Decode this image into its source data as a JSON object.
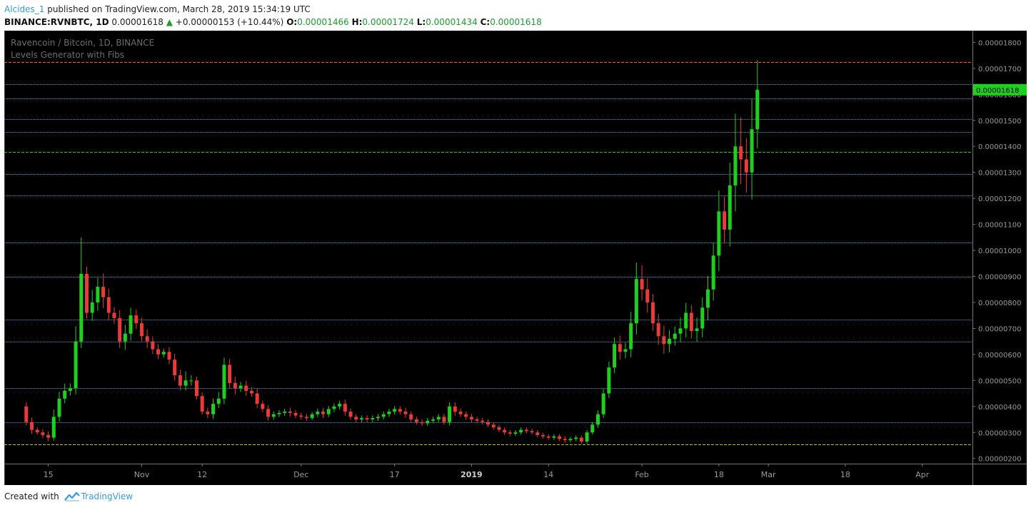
{
  "header": {
    "author": "Alcides_1",
    "published": "published on TradingView.com, March 28, 2019 15:34:19 UTC",
    "symbol": "BINANCE:RVNBTC, 1D",
    "last": "0.00001618",
    "change": "+0.00000153 (+10.44%)",
    "o_label": "O:",
    "o": "0.00001466",
    "h_label": "H:",
    "h": "0.00001724",
    "l_label": "L:",
    "l": "0.00001434",
    "c_label": "C:",
    "c": "0.00001618"
  },
  "footer": {
    "created": "Created with",
    "brand": "TradingView",
    "logo_icon": "tradingview-logo-icon"
  },
  "colors": {
    "background": "#000000",
    "up": "#1ed01e",
    "down": "#ea3a3a",
    "fib": "#3fa0d8",
    "top_level": "#ff5a1e",
    "mid_level": "#22c322",
    "bottom_level": "#c8c800"
  },
  "chart_data": {
    "type": "candlestick",
    "title": "Ravencoin / Bitcoin, 1D, BINANCE",
    "indicator": "Levels Generator with Fibs",
    "last_price_label": "0.00001618",
    "y_ticks": [
      "0.00000200",
      "0.00000300",
      "0.00000400",
      "0.00000500",
      "0.00000600",
      "0.00000700",
      "0.00000800",
      "0.00000900",
      "0.00001000",
      "0.00001100",
      "0.00001200",
      "0.00001300",
      "0.00001400",
      "0.00001500",
      "0.00001600",
      "0.00001700",
      "0.00001800"
    ],
    "ylim": [
      1.8e-06,
      1.845e-05
    ],
    "x_ticks": [
      "15",
      "Nov",
      "12",
      "Dec",
      "17",
      "2019",
      "14",
      "Feb",
      "18",
      "Mar",
      "18",
      "Apr"
    ],
    "x_tick_days": [
      8,
      25,
      36,
      54,
      71,
      85,
      99,
      116,
      130,
      139,
      153,
      167
    ],
    "x_bold": [
      "2019"
    ],
    "xlim": [
      0,
      176
    ],
    "levels": [
      {
        "value": 1.724e-05,
        "style": "dashed",
        "color": "top_level"
      },
      {
        "value": 1.64e-05,
        "style": "dotted",
        "color": "fib"
      },
      {
        "value": 1.585e-05,
        "style": "dotted",
        "color": "fib"
      },
      {
        "value": 1.505e-05,
        "style": "dotted",
        "color": "fib"
      },
      {
        "value": 1.455e-05,
        "style": "dotted",
        "color": "fib"
      },
      {
        "value": 1.38e-05,
        "style": "dashed",
        "color": "mid_level"
      },
      {
        "value": 1.295e-05,
        "style": "dotted",
        "color": "fib"
      },
      {
        "value": 1.21e-05,
        "style": "dotted",
        "color": "fib"
      },
      {
        "value": 1.03e-05,
        "style": "dotted",
        "color": "fib"
      },
      {
        "value": 9e-06,
        "style": "dotted",
        "color": "fib"
      },
      {
        "value": 7.35e-06,
        "style": "dotted",
        "color": "fib"
      },
      {
        "value": 6.5e-06,
        "style": "dotted",
        "color": "fib"
      },
      {
        "value": 4.7e-06,
        "style": "dotted",
        "color": "fib"
      },
      {
        "value": 3.4e-06,
        "style": "dotted",
        "color": "fib"
      },
      {
        "value": 2.55e-06,
        "style": "dashed",
        "color": "bottom_level"
      }
    ],
    "close_units": "1e-8 BTC (satoshi)",
    "start_day": 4,
    "close": [
      340,
      310,
      300,
      290,
      280,
      360,
      430,
      460,
      470,
      650,
      910,
      760,
      800,
      860,
      820,
      760,
      740,
      650,
      680,
      750,
      720,
      670,
      650,
      620,
      600,
      610,
      580,
      520,
      480,
      500,
      500,
      440,
      380,
      370,
      410,
      430,
      560,
      490,
      470,
      480,
      460,
      450,
      410,
      390,
      360,
      370,
      375,
      380,
      375,
      365,
      360,
      355,
      370,
      380,
      370,
      390,
      400,
      410,
      380,
      360,
      350,
      355,
      350,
      355,
      360,
      370,
      380,
      390,
      380,
      370,
      350,
      340,
      335,
      345,
      350,
      360,
      340,
      400,
      380,
      370,
      360,
      350,
      345,
      340,
      330,
      320,
      310,
      300,
      295,
      300,
      310,
      305,
      300,
      290,
      285,
      280,
      285,
      275,
      270,
      275,
      280,
      265,
      300,
      330,
      370,
      450,
      550,
      640,
      610,
      620,
      720,
      890,
      850,
      800,
      720,
      670,
      640,
      660,
      680,
      700,
      760,
      690,
      700,
      780,
      850,
      980,
      1150,
      1080,
      1250,
      1400,
      1350,
      1300,
      1466,
      1618
    ],
    "open_first": 400,
    "high_pct": [
      4,
      5,
      3,
      4,
      5,
      8,
      6,
      6,
      4,
      9,
      4,
      3,
      6,
      4,
      6,
      4,
      3,
      4,
      5,
      4,
      3,
      3,
      4,
      3,
      3,
      2,
      3,
      4,
      4,
      7,
      4,
      3,
      3,
      4,
      5,
      6,
      5,
      4,
      5,
      3,
      4,
      3,
      4,
      3,
      4,
      3,
      3,
      3,
      4,
      3,
      3,
      3,
      2,
      3,
      4,
      3,
      3,
      3,
      4,
      3,
      3,
      3,
      3,
      3,
      3,
      3,
      3,
      3,
      3,
      4,
      3,
      3,
      3,
      3,
      3,
      3,
      3,
      4,
      4,
      3,
      3,
      3,
      3,
      3,
      3,
      3,
      3,
      3,
      3,
      3,
      3,
      3,
      3,
      3,
      3,
      3,
      3,
      3,
      4,
      3,
      3,
      3,
      3,
      3,
      4,
      4,
      4,
      4,
      5,
      4,
      6,
      7,
      6,
      5,
      4,
      5,
      6,
      5,
      4,
      6,
      5,
      4,
      6,
      5,
      6,
      5,
      7,
      5,
      7,
      9,
      8,
      6,
      8,
      7
    ],
    "low_pct": [
      4,
      5,
      3,
      4,
      5,
      4,
      5,
      4,
      4,
      5,
      4,
      3,
      4,
      4,
      5,
      4,
      3,
      4,
      5,
      4,
      3,
      3,
      4,
      3,
      3,
      2,
      3,
      4,
      4,
      4,
      4,
      3,
      3,
      4,
      5,
      4,
      5,
      4,
      5,
      3,
      4,
      3,
      4,
      3,
      4,
      3,
      3,
      3,
      4,
      3,
      3,
      3,
      2,
      3,
      4,
      3,
      3,
      3,
      4,
      3,
      3,
      3,
      3,
      3,
      3,
      3,
      3,
      3,
      3,
      4,
      3,
      3,
      3,
      3,
      3,
      3,
      3,
      4,
      4,
      3,
      3,
      3,
      3,
      3,
      3,
      3,
      3,
      3,
      3,
      3,
      3,
      3,
      3,
      3,
      3,
      3,
      3,
      3,
      4,
      3,
      3,
      3,
      3,
      3,
      4,
      4,
      4,
      4,
      5,
      4,
      5,
      6,
      5,
      5,
      4,
      5,
      6,
      5,
      4,
      5,
      5,
      4,
      6,
      5,
      6,
      5,
      6,
      5,
      6,
      8,
      7,
      6,
      8,
      5
    ],
    "wick_overrides": {
      "10": {
        "high": 1050
      },
      "135": {
        "high": 1724,
        "low": 1434
      }
    }
  }
}
